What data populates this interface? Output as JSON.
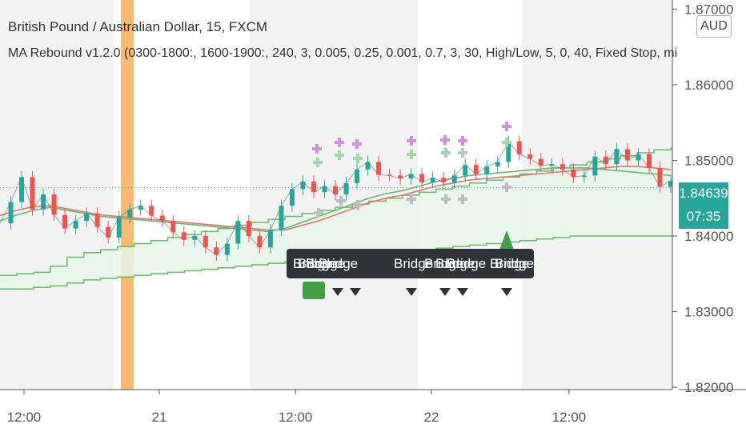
{
  "header": {
    "title": "British Pound / Australian Dollar, 15, FXCM",
    "study": "MA Rebound v1.2.0 (0300-1800:, 1600-1900:, 240, 3, 0.005, 0.25, 0.001, 0.7, 3, 30, High/Low, 5, 0, 40, Fixed Stop, mi"
  },
  "currency_button": "AUD",
  "last_price": "1.84639",
  "countdown": "07:35",
  "bridge_tooltip": {
    "labels": [
      "Bridge",
      "Bridge",
      "Bridge",
      "Bridge",
      "Bridge",
      "Bridge",
      "Bridge",
      "Bridge",
      "Bridge",
      "Bridge"
    ]
  },
  "colors": {
    "up": "#26a69a",
    "down": "#ef5350",
    "ma_green": "#66bb6a",
    "ma_red": "#e57373",
    "session_shade": "#f2f2f2",
    "highlight": "#f7b360",
    "tooltip_bg": "#2f3237"
  },
  "chart_data": {
    "type": "line",
    "x_tick_labels": [
      "12:00",
      "21",
      "12:00",
      "22",
      "12:00"
    ],
    "y_tick_labels": [
      "1.82000",
      "1.83000",
      "1.84000",
      "1.85000",
      "1.86000",
      "1.87000"
    ],
    "ylim": [
      1.8197,
      1.8712
    ],
    "grid": false,
    "series": [
      {
        "values": [
          1.8417,
          1.8445,
          1.8478,
          1.8435,
          1.8455,
          1.8428,
          1.841,
          1.842,
          1.843,
          1.8412,
          1.8398,
          1.8425,
          1.8435,
          1.844,
          1.8427,
          1.842,
          1.8405,
          1.8395,
          1.84,
          1.8385,
          1.8375,
          1.839,
          1.842,
          1.84,
          1.8385,
          1.8408,
          1.844,
          1.8462,
          1.8472,
          1.8458,
          1.8466,
          1.8455,
          1.847,
          1.8488,
          1.8498,
          1.8481,
          1.848,
          1.8476,
          1.8482,
          1.8471,
          1.8477,
          1.8471,
          1.848,
          1.8494,
          1.8482,
          1.8492,
          1.8498,
          1.8525,
          1.8508,
          1.8502,
          1.8493,
          1.8495,
          1.8488,
          1.8478,
          1.848,
          1.8505,
          1.8495,
          1.8515,
          1.85,
          1.8508,
          1.849,
          1.8465,
          1.8473
        ]
      },
      {
        "values": [
          1.842,
          1.8428,
          1.8434,
          1.8438,
          1.8434,
          1.843,
          1.8426,
          1.8424,
          1.8422,
          1.842,
          1.8418,
          1.8416,
          1.8414,
          1.8412,
          1.841,
          1.8408,
          1.8406,
          1.841,
          1.8418,
          1.8426,
          1.8434,
          1.8442,
          1.845,
          1.8456,
          1.846,
          1.8466,
          1.8472,
          1.8476,
          1.848,
          1.8482,
          1.8484,
          1.8486,
          1.8488,
          1.849,
          1.849,
          1.849,
          1.8488,
          1.8486,
          1.8484,
          1.8482,
          1.848
        ]
      },
      {
        "values": [
          1.8427,
          1.8434,
          1.8439,
          1.844,
          1.8436,
          1.8432,
          1.8428,
          1.8426,
          1.8424,
          1.8422,
          1.842,
          1.8418,
          1.8416,
          1.8414,
          1.8412,
          1.841,
          1.8408,
          1.8408,
          1.8414,
          1.842,
          1.8428,
          1.8436,
          1.8444,
          1.845,
          1.8454,
          1.846,
          1.8466,
          1.847,
          1.8474,
          1.8476,
          1.8478,
          1.848,
          1.8482,
          1.8484,
          1.8486,
          1.8488,
          1.849,
          1.8492,
          1.8492,
          1.849,
          1.8488
        ]
      },
      {
        "values": [
          1.8348,
          1.835,
          1.8352,
          1.836,
          1.8372,
          1.8378,
          1.8382,
          1.8386,
          1.839,
          1.8394,
          1.8398,
          1.8402,
          1.8406,
          1.841,
          1.8414,
          1.8418,
          1.8422,
          1.8426,
          1.843,
          1.8434,
          1.8438,
          1.8442,
          1.8446,
          1.845,
          1.8454,
          1.8458,
          1.8462,
          1.8466,
          1.847,
          1.8474,
          1.8478,
          1.8482,
          1.8486,
          1.849,
          1.8494,
          1.8498,
          1.8502,
          1.8506,
          1.851,
          1.8514,
          1.8516
        ]
      },
      {
        "values": [
          1.833,
          1.833,
          1.8332,
          1.8334,
          1.8338,
          1.8342,
          1.8344,
          1.8346,
          1.8348,
          1.835,
          1.8352,
          1.8354,
          1.8356,
          1.8358,
          1.836,
          1.8362,
          1.8364,
          1.8366,
          1.8368,
          1.837,
          1.8372,
          1.8374,
          1.8376,
          1.8378,
          1.838,
          1.8382,
          1.8384,
          1.8386,
          1.8388,
          1.839,
          1.8392,
          1.8394,
          1.8396,
          1.8398,
          1.84,
          1.84,
          1.84,
          1.84,
          1.84,
          1.84,
          1.84
        ]
      }
    ]
  }
}
